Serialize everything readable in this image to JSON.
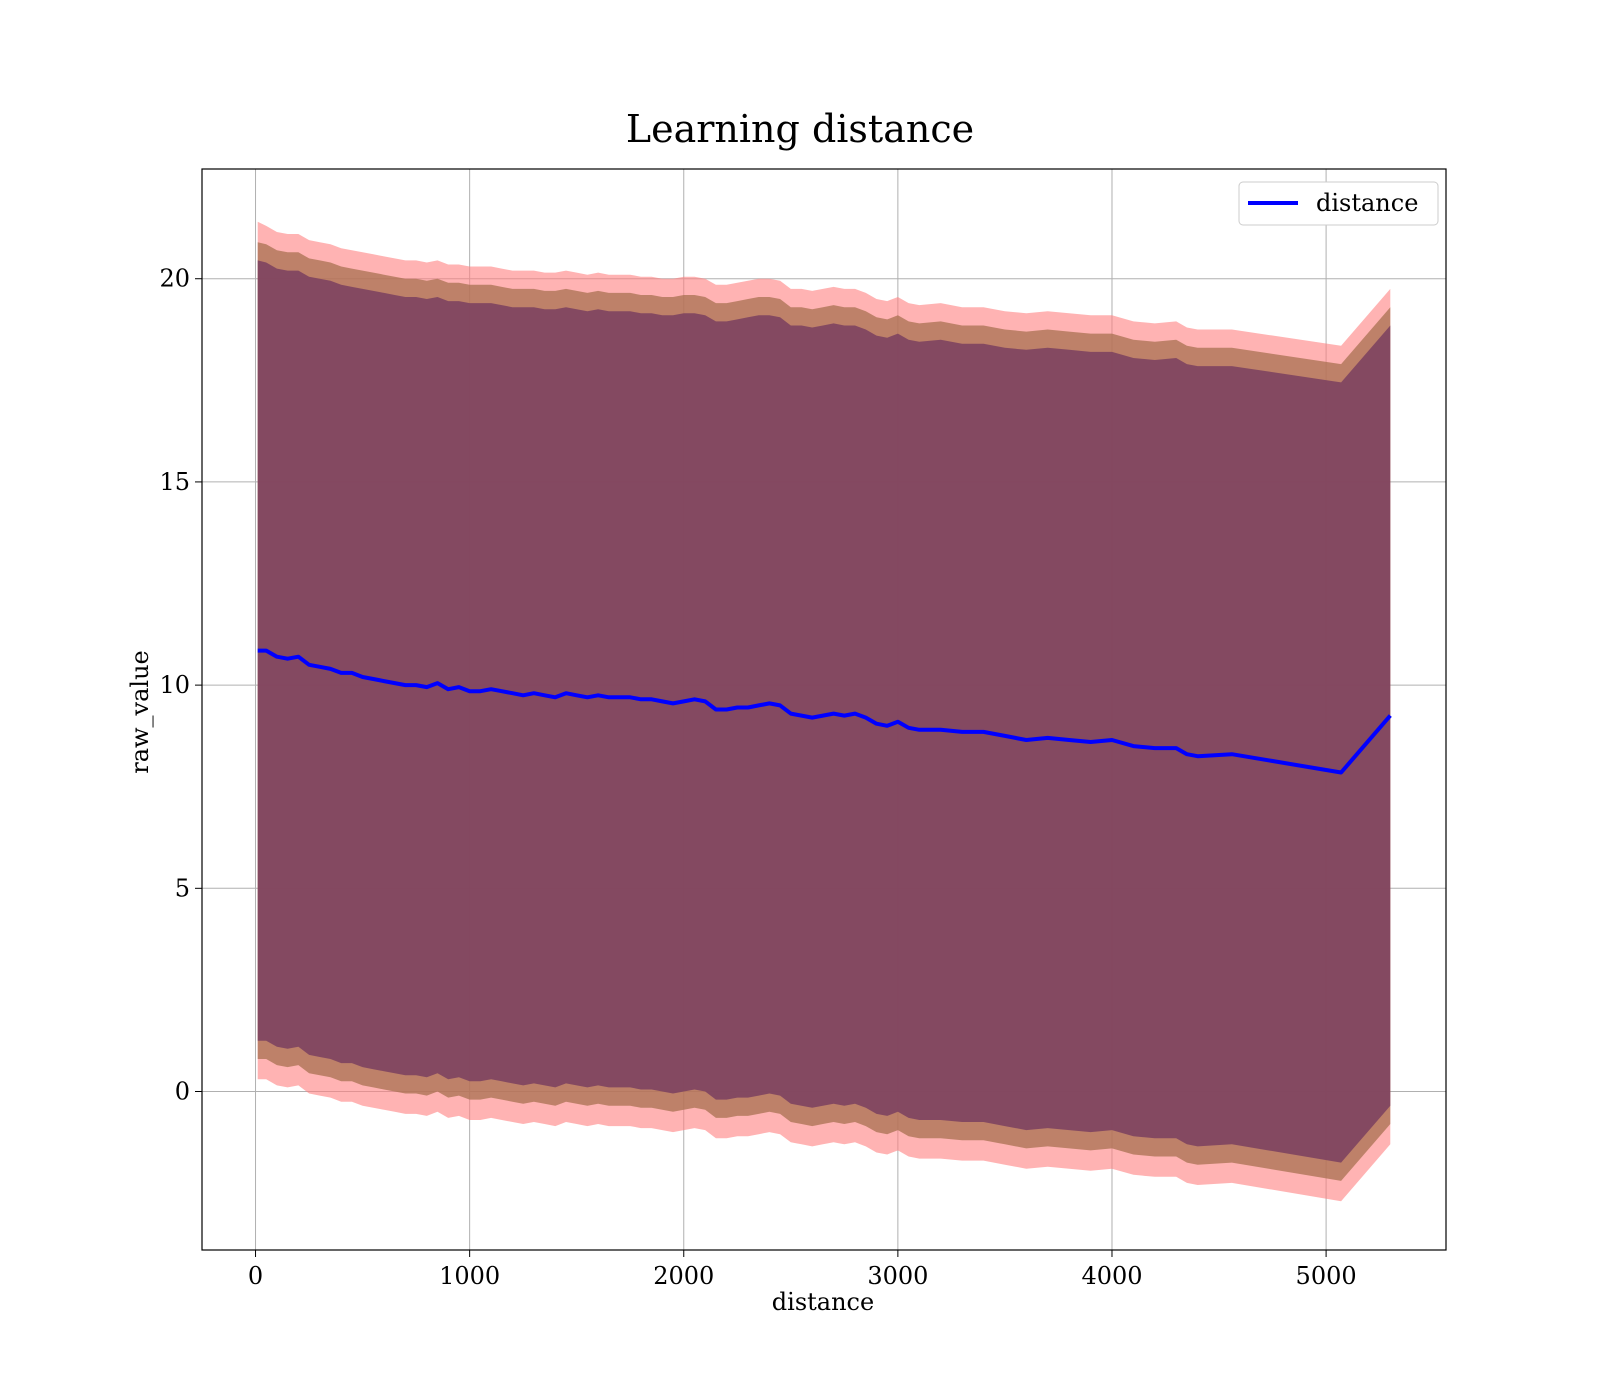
{
  "chart_data": {
    "type": "line",
    "title": "Learning distance",
    "xlabel": "distance",
    "ylabel": "raw_value",
    "xlim": [
      -250,
      5560
    ],
    "ylim": [
      -3.9,
      22.7
    ],
    "x_ticks": [
      0,
      1000,
      2000,
      3000,
      4000,
      5000
    ],
    "y_ticks": [
      0,
      5,
      10,
      15,
      20
    ],
    "grid": true,
    "legend": {
      "placement": "top-right",
      "entries": [
        "distance"
      ]
    },
    "colors": {
      "line": "#0000ff",
      "band_outer": "#ff8080",
      "band_middle": "#a87050",
      "band_inner": "#7a4060"
    },
    "series": [
      {
        "name": "distance",
        "x": [
          10,
          50,
          100,
          150,
          200,
          250,
          300,
          350,
          400,
          450,
          500,
          550,
          600,
          650,
          700,
          750,
          800,
          850,
          900,
          950,
          1000,
          1050,
          1100,
          1150,
          1200,
          1250,
          1300,
          1350,
          1400,
          1450,
          1500,
          1550,
          1600,
          1650,
          1700,
          1750,
          1800,
          1850,
          1900,
          1950,
          2000,
          2050,
          2100,
          2150,
          2200,
          2250,
          2300,
          2350,
          2400,
          2450,
          2500,
          2550,
          2600,
          2650,
          2700,
          2750,
          2800,
          2850,
          2900,
          2950,
          3000,
          3050,
          3100,
          3200,
          3300,
          3400,
          3500,
          3600,
          3700,
          3800,
          3900,
          4000,
          4100,
          4200,
          4300,
          4350,
          4400,
          4560,
          5070,
          5300
        ],
        "y": [
          10.85,
          10.85,
          10.7,
          10.65,
          10.7,
          10.5,
          10.45,
          10.4,
          10.3,
          10.3,
          10.2,
          10.15,
          10.1,
          10.05,
          10.0,
          10.0,
          9.95,
          10.05,
          9.9,
          9.95,
          9.85,
          9.85,
          9.9,
          9.85,
          9.8,
          9.75,
          9.8,
          9.75,
          9.7,
          9.8,
          9.75,
          9.7,
          9.75,
          9.7,
          9.7,
          9.7,
          9.65,
          9.65,
          9.6,
          9.55,
          9.6,
          9.65,
          9.6,
          9.4,
          9.4,
          9.45,
          9.45,
          9.5,
          9.55,
          9.5,
          9.3,
          9.25,
          9.2,
          9.25,
          9.3,
          9.25,
          9.3,
          9.2,
          9.05,
          9.0,
          9.1,
          8.95,
          8.9,
          8.9,
          8.85,
          8.85,
          8.75,
          8.65,
          8.7,
          8.65,
          8.6,
          8.65,
          8.5,
          8.45,
          8.45,
          8.3,
          8.25,
          8.3,
          7.85,
          9.25
        ],
        "band_outer_upper": [
          21.4,
          21.3,
          21.15,
          21.1,
          21.1,
          20.95,
          20.9,
          20.85,
          20.75,
          20.7,
          20.65,
          20.6,
          20.55,
          20.5,
          20.45,
          20.45,
          20.4,
          20.45,
          20.35,
          20.35,
          20.3,
          20.3,
          20.3,
          20.25,
          20.2,
          20.2,
          20.2,
          20.15,
          20.15,
          20.2,
          20.15,
          20.1,
          20.15,
          20.1,
          20.1,
          20.1,
          20.05,
          20.05,
          20.0,
          20.0,
          20.05,
          20.05,
          20.0,
          19.85,
          19.85,
          19.9,
          19.95,
          20.0,
          20.0,
          19.95,
          19.75,
          19.75,
          19.7,
          19.75,
          19.8,
          19.75,
          19.75,
          19.65,
          19.5,
          19.45,
          19.55,
          19.4,
          19.35,
          19.4,
          19.3,
          19.3,
          19.2,
          19.15,
          19.2,
          19.15,
          19.1,
          19.1,
          18.95,
          18.9,
          18.95,
          18.8,
          18.75,
          18.75,
          18.35,
          19.75
        ],
        "band_middle_upper": [
          20.9,
          20.85,
          20.7,
          20.65,
          20.65,
          20.5,
          20.45,
          20.4,
          20.3,
          20.25,
          20.2,
          20.15,
          20.1,
          20.05,
          20.0,
          20.0,
          19.95,
          20.0,
          19.9,
          19.9,
          19.85,
          19.85,
          19.85,
          19.8,
          19.75,
          19.75,
          19.75,
          19.7,
          19.7,
          19.75,
          19.7,
          19.65,
          19.7,
          19.65,
          19.65,
          19.65,
          19.6,
          19.6,
          19.55,
          19.55,
          19.6,
          19.6,
          19.55,
          19.4,
          19.4,
          19.45,
          19.5,
          19.55,
          19.55,
          19.5,
          19.3,
          19.3,
          19.25,
          19.3,
          19.35,
          19.3,
          19.3,
          19.2,
          19.05,
          19.0,
          19.1,
          18.95,
          18.9,
          18.95,
          18.85,
          18.85,
          18.75,
          18.7,
          18.75,
          18.7,
          18.65,
          18.65,
          18.5,
          18.45,
          18.5,
          18.35,
          18.3,
          18.3,
          17.9,
          19.3
        ],
        "band_inner_upper": [
          20.45,
          20.4,
          20.25,
          20.2,
          20.2,
          20.05,
          20.0,
          19.95,
          19.85,
          19.8,
          19.75,
          19.7,
          19.65,
          19.6,
          19.55,
          19.55,
          19.5,
          19.55,
          19.45,
          19.45,
          19.4,
          19.4,
          19.4,
          19.35,
          19.3,
          19.3,
          19.3,
          19.25,
          19.25,
          19.3,
          19.25,
          19.2,
          19.25,
          19.2,
          19.2,
          19.2,
          19.15,
          19.15,
          19.1,
          19.1,
          19.15,
          19.15,
          19.1,
          18.95,
          18.95,
          19.0,
          19.05,
          19.1,
          19.1,
          19.05,
          18.85,
          18.85,
          18.8,
          18.85,
          18.9,
          18.85,
          18.85,
          18.75,
          18.6,
          18.55,
          18.65,
          18.5,
          18.45,
          18.5,
          18.4,
          18.4,
          18.3,
          18.25,
          18.3,
          18.25,
          18.2,
          18.2,
          18.05,
          18.0,
          18.05,
          17.9,
          17.85,
          17.85,
          17.45,
          18.85
        ],
        "band_inner_lower": [
          1.25,
          1.25,
          1.1,
          1.05,
          1.1,
          0.9,
          0.85,
          0.8,
          0.7,
          0.7,
          0.6,
          0.55,
          0.5,
          0.45,
          0.4,
          0.4,
          0.35,
          0.45,
          0.3,
          0.35,
          0.25,
          0.25,
          0.3,
          0.25,
          0.2,
          0.15,
          0.2,
          0.15,
          0.1,
          0.2,
          0.15,
          0.1,
          0.15,
          0.1,
          0.1,
          0.1,
          0.05,
          0.05,
          0.0,
          -0.05,
          0.0,
          0.05,
          0.0,
          -0.2,
          -0.2,
          -0.15,
          -0.15,
          -0.1,
          -0.05,
          -0.1,
          -0.3,
          -0.35,
          -0.4,
          -0.35,
          -0.3,
          -0.35,
          -0.3,
          -0.4,
          -0.55,
          -0.6,
          -0.5,
          -0.65,
          -0.7,
          -0.7,
          -0.75,
          -0.75,
          -0.85,
          -0.95,
          -0.9,
          -0.95,
          -1.0,
          -0.95,
          -1.1,
          -1.15,
          -1.15,
          -1.3,
          -1.35,
          -1.3,
          -1.75,
          -0.35
        ],
        "band_middle_lower": [
          0.8,
          0.8,
          0.65,
          0.6,
          0.65,
          0.45,
          0.4,
          0.35,
          0.25,
          0.25,
          0.15,
          0.1,
          0.05,
          0.0,
          -0.05,
          -0.05,
          -0.1,
          0.0,
          -0.15,
          -0.1,
          -0.2,
          -0.2,
          -0.15,
          -0.2,
          -0.25,
          -0.3,
          -0.25,
          -0.3,
          -0.35,
          -0.25,
          -0.3,
          -0.35,
          -0.3,
          -0.35,
          -0.35,
          -0.35,
          -0.4,
          -0.4,
          -0.45,
          -0.5,
          -0.45,
          -0.4,
          -0.45,
          -0.65,
          -0.65,
          -0.6,
          -0.6,
          -0.55,
          -0.5,
          -0.55,
          -0.75,
          -0.8,
          -0.85,
          -0.8,
          -0.75,
          -0.8,
          -0.75,
          -0.85,
          -1.0,
          -1.05,
          -0.95,
          -1.1,
          -1.15,
          -1.15,
          -1.2,
          -1.2,
          -1.3,
          -1.4,
          -1.35,
          -1.4,
          -1.45,
          -1.4,
          -1.55,
          -1.6,
          -1.6,
          -1.75,
          -1.8,
          -1.75,
          -2.2,
          -0.8
        ],
        "band_outer_lower": [
          0.3,
          0.3,
          0.15,
          0.1,
          0.15,
          -0.05,
          -0.1,
          -0.15,
          -0.25,
          -0.25,
          -0.35,
          -0.4,
          -0.45,
          -0.5,
          -0.55,
          -0.55,
          -0.6,
          -0.5,
          -0.65,
          -0.6,
          -0.7,
          -0.7,
          -0.65,
          -0.7,
          -0.75,
          -0.8,
          -0.75,
          -0.8,
          -0.85,
          -0.75,
          -0.8,
          -0.85,
          -0.8,
          -0.85,
          -0.85,
          -0.85,
          -0.9,
          -0.9,
          -0.95,
          -1.0,
          -0.95,
          -0.9,
          -0.95,
          -1.15,
          -1.15,
          -1.1,
          -1.1,
          -1.05,
          -1.0,
          -1.05,
          -1.25,
          -1.3,
          -1.35,
          -1.3,
          -1.25,
          -1.3,
          -1.25,
          -1.35,
          -1.5,
          -1.55,
          -1.45,
          -1.6,
          -1.65,
          -1.65,
          -1.7,
          -1.7,
          -1.8,
          -1.9,
          -1.85,
          -1.9,
          -1.95,
          -1.9,
          -2.05,
          -2.1,
          -2.1,
          -2.25,
          -2.3,
          -2.25,
          -2.7,
          -1.3
        ]
      }
    ]
  }
}
